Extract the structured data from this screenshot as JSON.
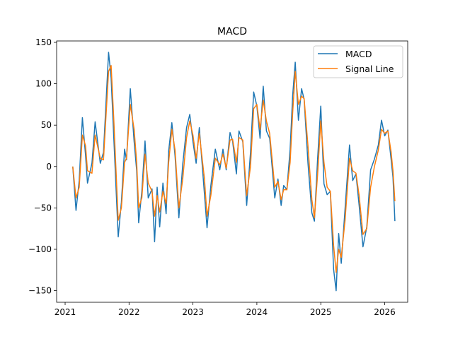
{
  "chart_data": {
    "type": "line",
    "title": "MACD",
    "xlabel": "",
    "ylabel": "",
    "xlim": [
      2020.867,
      2026.36
    ],
    "ylim": [
      -164,
      151.7
    ],
    "xticks": [
      2021,
      2022,
      2023,
      2024,
      2025,
      2026
    ],
    "xtick_labels": [
      "2021",
      "2022",
      "2023",
      "2024",
      "2025",
      "2026"
    ],
    "yticks": [
      -150,
      -100,
      -50,
      0,
      50,
      100,
      150
    ],
    "ytick_labels": [
      "−150",
      "−100",
      "−50",
      "0",
      "50",
      "100",
      "150"
    ],
    "grid": false,
    "legend_position": "upper-right",
    "x": [
      2021.12,
      2021.17,
      2021.22,
      2021.27,
      2021.32,
      2021.35,
      2021.42,
      2021.47,
      2021.55,
      2021.6,
      2021.68,
      2021.72,
      2021.76,
      2021.83,
      2021.88,
      2021.93,
      2021.96,
      2022.02,
      2022.08,
      2022.12,
      2022.15,
      2022.2,
      2022.25,
      2022.3,
      2022.36,
      2022.4,
      2022.44,
      2022.48,
      2022.53,
      2022.58,
      2022.62,
      2022.67,
      2022.72,
      2022.78,
      2022.84,
      2022.9,
      2022.95,
      2023.0,
      2023.05,
      2023.1,
      2023.18,
      2023.22,
      2023.28,
      2023.35,
      2023.42,
      2023.47,
      2023.52,
      2023.58,
      2023.62,
      2023.68,
      2023.72,
      2023.78,
      2023.84,
      2023.9,
      2023.95,
      2024.0,
      2024.05,
      2024.1,
      2024.15,
      2024.2,
      2024.28,
      2024.33,
      2024.38,
      2024.42,
      2024.47,
      2024.52,
      2024.56,
      2024.6,
      2024.65,
      2024.7,
      2024.74,
      2024.8,
      2024.86,
      2024.9,
      2024.95,
      2025.0,
      2025.05,
      2025.1,
      2025.15,
      2025.2,
      2025.24,
      2025.28,
      2025.32,
      2025.38,
      2025.45,
      2025.5,
      2025.55,
      2025.6,
      2025.66,
      2025.72,
      2025.78,
      2025.84,
      2025.9,
      2025.95,
      2026.0,
      2026.05,
      2026.1,
      2026.13,
      2026.16
    ],
    "series": [
      {
        "name": "MACD",
        "color": "#1f77b4",
        "values": [
          0,
          -53,
          -17,
          59,
          13,
          -20,
          4,
          54,
          4,
          17,
          138,
          107,
          38,
          -85,
          -43,
          21,
          8,
          94,
          30,
          -5,
          -68,
          -30,
          31,
          -38,
          -27,
          -91,
          -25,
          -73,
          -20,
          -57,
          19,
          53,
          13,
          -62,
          3,
          47,
          63,
          30,
          4,
          47,
          -34,
          -74,
          -23,
          21,
          -4,
          21,
          -4,
          41,
          31,
          -9,
          43,
          30,
          -47,
          17,
          90,
          73,
          34,
          97,
          43,
          34,
          -38,
          -15,
          -47,
          -23,
          -28,
          21,
          86,
          126,
          56,
          94,
          81,
          4,
          -56,
          -66,
          9,
          73,
          -21,
          -34,
          -30,
          -124,
          -150,
          -81,
          -117,
          -51,
          26,
          -17,
          -9,
          -47,
          -97,
          -73,
          -4,
          9,
          26,
          56,
          37,
          44,
          9,
          -13,
          -66
        ]
      },
      {
        "name": "Signal Line",
        "color": "#ff7f0e",
        "values": [
          0,
          -38,
          -25,
          38,
          25,
          -5,
          -8,
          38,
          10,
          8,
          115,
          122,
          60,
          -65,
          -50,
          5,
          10,
          75,
          45,
          5,
          -50,
          -38,
          15,
          -20,
          -30,
          -60,
          -35,
          -55,
          -30,
          -45,
          5,
          45,
          20,
          -50,
          -15,
          35,
          55,
          38,
          10,
          40,
          -15,
          -60,
          -35,
          10,
          2,
          15,
          -2,
          32,
          33,
          5,
          35,
          32,
          -35,
          0,
          70,
          75,
          45,
          80,
          55,
          40,
          -25,
          -18,
          -40,
          -28,
          -28,
          5,
          65,
          115,
          75,
          85,
          82,
          25,
          -40,
          -62,
          -10,
          55,
          5,
          -25,
          -30,
          -95,
          -128,
          -100,
          -110,
          -65,
          10,
          -5,
          -8,
          -35,
          -82,
          -75,
          -25,
          0,
          20,
          45,
          40,
          43,
          18,
          -5,
          -42
        ]
      }
    ]
  }
}
